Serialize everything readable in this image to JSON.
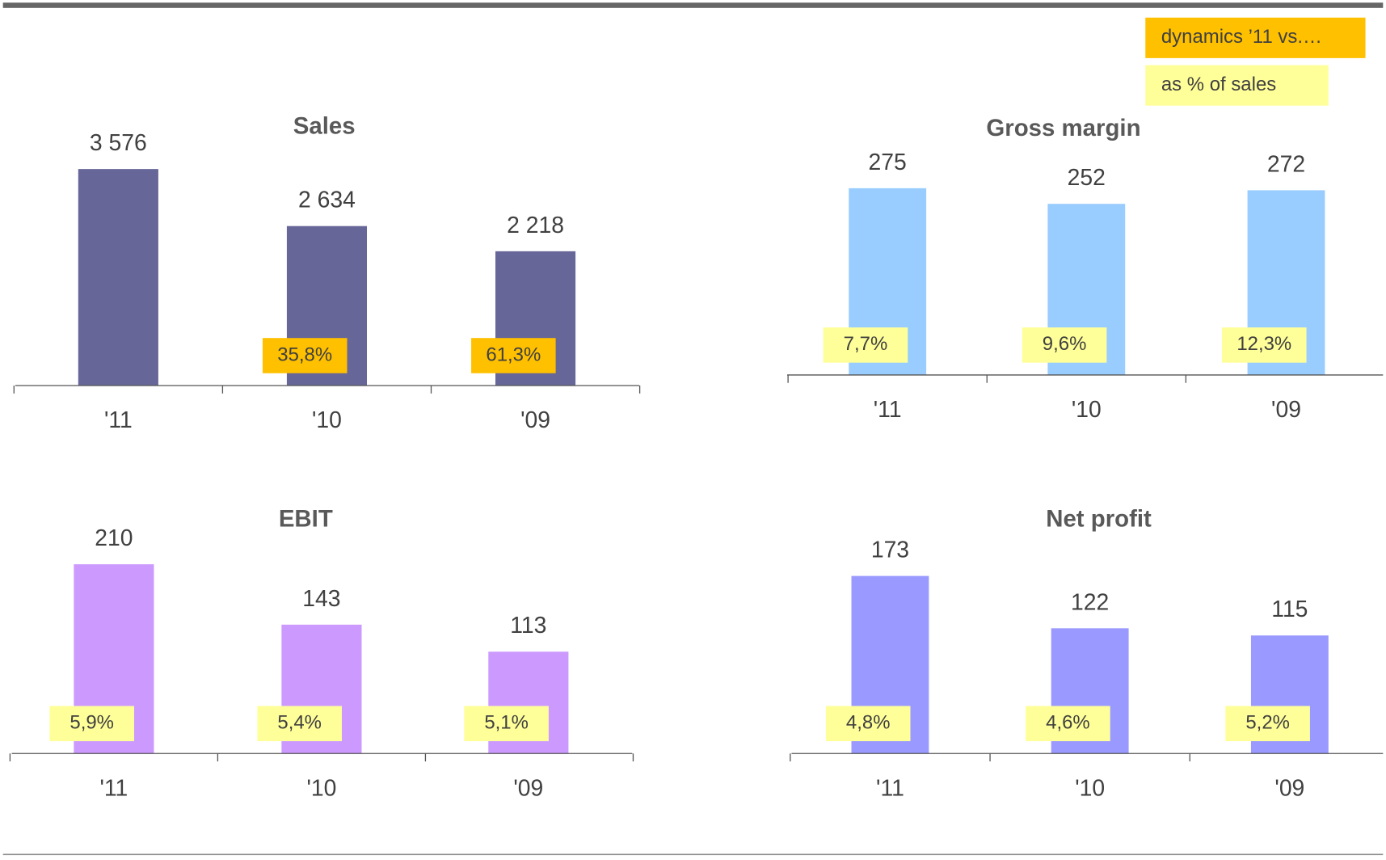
{
  "legend": [
    {
      "label": "dynamics ’11 vs.…",
      "color": "#ffc000"
    },
    {
      "label": "as % of sales",
      "color": "#ffff99"
    }
  ],
  "chart_data": [
    {
      "type": "bar",
      "title": "Sales",
      "categories": [
        "'11",
        "'10",
        "'09"
      ],
      "values": [
        3576,
        2634,
        2218
      ],
      "value_labels": [
        "3 576",
        "2 634",
        "2 218"
      ],
      "color": "#666699",
      "ylim": [
        0,
        3780
      ],
      "annotations": [
        null,
        "35,8%",
        "61,3%"
      ],
      "annotation_color": "#ffc000"
    },
    {
      "type": "bar",
      "title": "Gross margin",
      "categories": [
        "'11",
        "'10",
        "'09"
      ],
      "values": [
        275,
        252,
        272
      ],
      "color": "#99ccff",
      "ylim": [
        0,
        337
      ],
      "annotations": [
        "7,7%",
        "9,6%",
        "12,3%"
      ],
      "annotation_color": "#ffff99"
    },
    {
      "type": "bar",
      "title": "EBIT",
      "categories": [
        "'11",
        "'10",
        "'09"
      ],
      "values": [
        210,
        143,
        113
      ],
      "color": "#cc99ff",
      "ylim": [
        0,
        254
      ],
      "annotations": [
        "5,9%",
        "5,4%",
        "5,1%"
      ],
      "annotation_color": "#ffff99"
    },
    {
      "type": "bar",
      "title": "Net profit",
      "categories": [
        "'11",
        "'10",
        "'09"
      ],
      "values": [
        173,
        122,
        115
      ],
      "color": "#9999ff",
      "ylim": [
        0,
        223
      ],
      "annotations": [
        "4,8%",
        "4,6%",
        "5,2%"
      ],
      "annotation_color": "#ffff99"
    }
  ]
}
